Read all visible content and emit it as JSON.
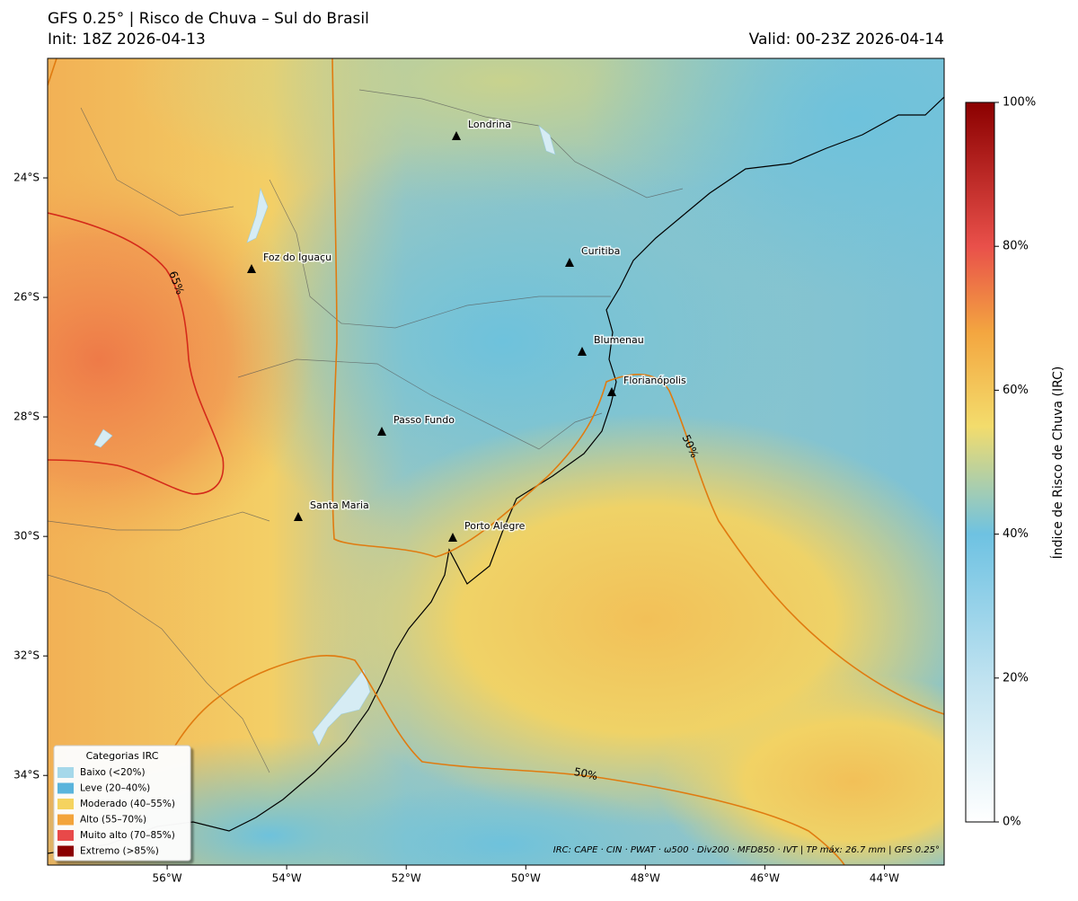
{
  "header": {
    "title": "GFS 0.25° | Risco de Chuva – Sul do Brasil",
    "init": "Init: 18Z 2026-04-13",
    "valid": "Valid: 00-23Z 2026-04-14"
  },
  "map": {
    "lonlim": [
      -58,
      -43
    ],
    "latlim": [
      -35.5,
      -22
    ],
    "lon_ticks": [
      {
        "value": -56,
        "label": "56°W"
      },
      {
        "value": -54,
        "label": "54°W"
      },
      {
        "value": -52,
        "label": "52°W"
      },
      {
        "value": -50,
        "label": "50°W"
      },
      {
        "value": -48,
        "label": "48°W"
      },
      {
        "value": -46,
        "label": "46°W"
      },
      {
        "value": -44,
        "label": "44°W"
      }
    ],
    "lat_ticks": [
      {
        "value": -24,
        "label": "24°S"
      },
      {
        "value": -26,
        "label": "26°S"
      },
      {
        "value": -28,
        "label": "28°S"
      },
      {
        "value": -30,
        "label": "30°S"
      },
      {
        "value": -32,
        "label": "32°S"
      },
      {
        "value": -34,
        "label": "34°S"
      }
    ],
    "cities": [
      "Londrina",
      "Foz do Iguaçu",
      "Curitiba",
      "Blumenau",
      "Florianópolis",
      "Passo Fundo",
      "Santa Maria",
      "Porto Alegre"
    ],
    "contour_labels": [
      "65%",
      "50%",
      "50%"
    ],
    "note": "IRC: CAPE · CIN · PWAT · ω500 · Div200 · MFD850 · IVT  |  TP máx: 26.7 mm  |  GFS 0.25°"
  },
  "legend": {
    "title": "Categorias IRC",
    "items": [
      {
        "label": "Baixo (<20%)",
        "color": "#a6d8ea"
      },
      {
        "label": "Leve (20–40%)",
        "color": "#5ab4dc"
      },
      {
        "label": "Moderado (40–55%)",
        "color": "#f5d35e"
      },
      {
        "label": "Alto (55–70%)",
        "color": "#f3a43b"
      },
      {
        "label": "Muito alto (70–85%)",
        "color": "#e8484a"
      },
      {
        "label": "Extremo (>85%)",
        "color": "#8b0000"
      }
    ]
  },
  "colorbar": {
    "label": "Índice de Risco de Chuva (IRC)",
    "lim": [
      0,
      100
    ],
    "ticks": [
      {
        "value": 0,
        "label": "0%"
      },
      {
        "value": 20,
        "label": "20%"
      },
      {
        "value": 40,
        "label": "40%"
      },
      {
        "value": 60,
        "label": "60%"
      },
      {
        "value": 80,
        "label": "80%"
      },
      {
        "value": 100,
        "label": "100%"
      }
    ]
  }
}
